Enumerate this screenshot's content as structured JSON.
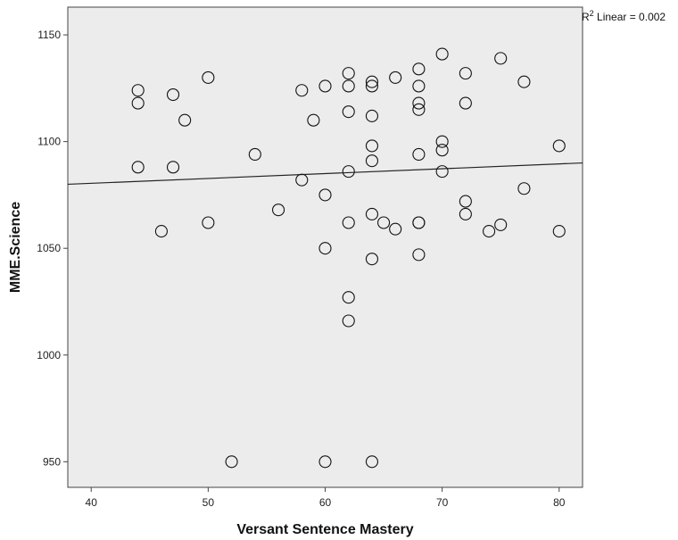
{
  "chart_data": {
    "type": "scatter",
    "xlabel": "Versant Sentence Mastery",
    "ylabel": "MME.Science",
    "xlim": [
      38,
      82
    ],
    "ylim": [
      938,
      1163
    ],
    "x_ticks": [
      40,
      50,
      60,
      70,
      80
    ],
    "y_ticks": [
      950,
      1000,
      1050,
      1100,
      1150
    ],
    "grid": false,
    "background": "#ececec",
    "marker": "open-circle",
    "fit_line": {
      "label_prefix": "R",
      "label_sup": "2",
      "label_suffix": " Linear = 0.002",
      "x": [
        38,
        82
      ],
      "y": [
        1080,
        1090
      ]
    },
    "points": [
      {
        "x": 44,
        "y": 1124
      },
      {
        "x": 44,
        "y": 1118
      },
      {
        "x": 44,
        "y": 1088
      },
      {
        "x": 46,
        "y": 1058
      },
      {
        "x": 47,
        "y": 1122
      },
      {
        "x": 47,
        "y": 1088
      },
      {
        "x": 48,
        "y": 1110
      },
      {
        "x": 50,
        "y": 1130
      },
      {
        "x": 50,
        "y": 1062
      },
      {
        "x": 52,
        "y": 950
      },
      {
        "x": 54,
        "y": 1094
      },
      {
        "x": 56,
        "y": 1068
      },
      {
        "x": 58,
        "y": 1124
      },
      {
        "x": 58,
        "y": 1082
      },
      {
        "x": 59,
        "y": 1110
      },
      {
        "x": 60,
        "y": 1126
      },
      {
        "x": 60,
        "y": 1075
      },
      {
        "x": 60,
        "y": 1050
      },
      {
        "x": 60,
        "y": 950
      },
      {
        "x": 62,
        "y": 1132
      },
      {
        "x": 62,
        "y": 1126
      },
      {
        "x": 62,
        "y": 1114
      },
      {
        "x": 62,
        "y": 1086
      },
      {
        "x": 62,
        "y": 1062
      },
      {
        "x": 62,
        "y": 1027
      },
      {
        "x": 62,
        "y": 1016
      },
      {
        "x": 64,
        "y": 1128
      },
      {
        "x": 64,
        "y": 1126
      },
      {
        "x": 64,
        "y": 1112
      },
      {
        "x": 64,
        "y": 1098
      },
      {
        "x": 64,
        "y": 1091
      },
      {
        "x": 64,
        "y": 1066
      },
      {
        "x": 64,
        "y": 1045
      },
      {
        "x": 64,
        "y": 950
      },
      {
        "x": 65,
        "y": 1062
      },
      {
        "x": 66,
        "y": 1130
      },
      {
        "x": 66,
        "y": 1059
      },
      {
        "x": 68,
        "y": 1134
      },
      {
        "x": 68,
        "y": 1126
      },
      {
        "x": 68,
        "y": 1118
      },
      {
        "x": 68,
        "y": 1115
      },
      {
        "x": 68,
        "y": 1094
      },
      {
        "x": 68,
        "y": 1062
      },
      {
        "x": 68,
        "y": 1062
      },
      {
        "x": 68,
        "y": 1047
      },
      {
        "x": 70,
        "y": 1141
      },
      {
        "x": 70,
        "y": 1100
      },
      {
        "x": 70,
        "y": 1096
      },
      {
        "x": 70,
        "y": 1086
      },
      {
        "x": 72,
        "y": 1132
      },
      {
        "x": 72,
        "y": 1118
      },
      {
        "x": 72,
        "y": 1072
      },
      {
        "x": 72,
        "y": 1066
      },
      {
        "x": 74,
        "y": 1058
      },
      {
        "x": 75,
        "y": 1139
      },
      {
        "x": 75,
        "y": 1061
      },
      {
        "x": 77,
        "y": 1128
      },
      {
        "x": 77,
        "y": 1078
      },
      {
        "x": 80,
        "y": 1098
      },
      {
        "x": 80,
        "y": 1058
      }
    ]
  }
}
